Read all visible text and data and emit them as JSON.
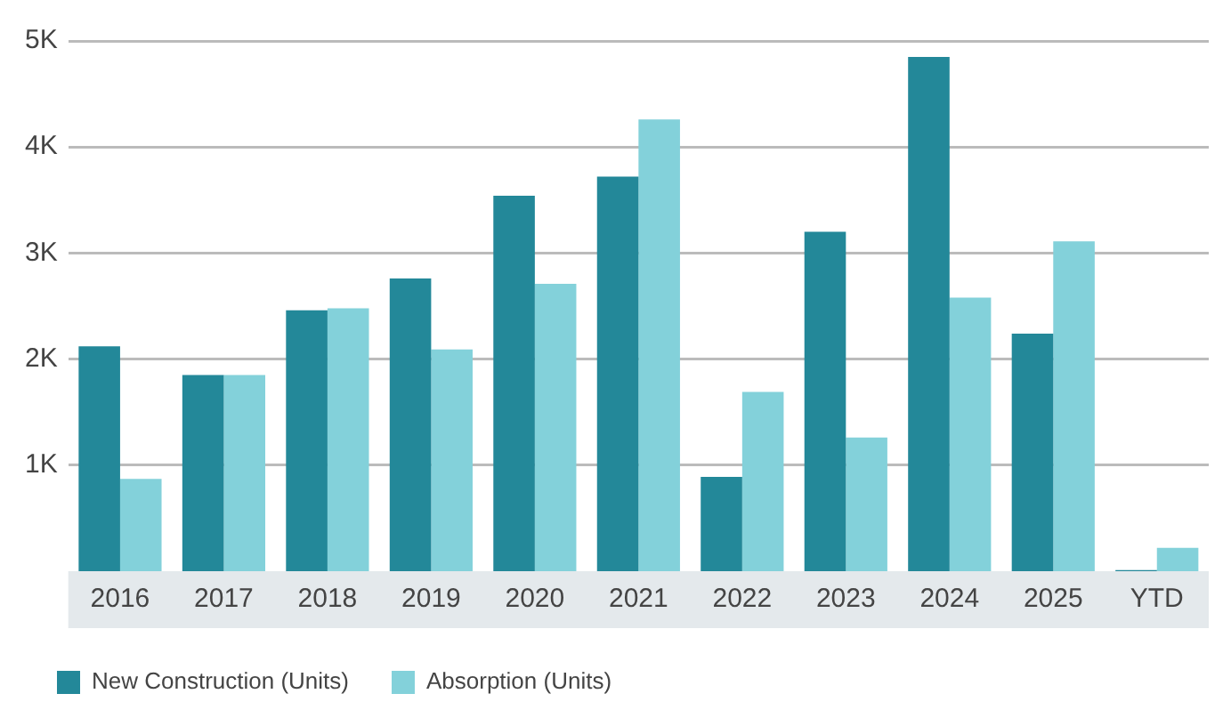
{
  "chart_data": {
    "type": "bar",
    "categories": [
      "2016",
      "2017",
      "2018",
      "2019",
      "2020",
      "2021",
      "2022",
      "2023",
      "2024",
      "2025",
      "YTD"
    ],
    "series": [
      {
        "name": "New Construction (Units)",
        "color": "#238899",
        "values": [
          2120,
          1850,
          2460,
          2760,
          3540,
          3720,
          890,
          3200,
          4850,
          2240,
          10
        ]
      },
      {
        "name": "Absorption (Units)",
        "color": "#83d1da",
        "values": [
          870,
          1850,
          2480,
          2090,
          2710,
          4260,
          1690,
          1260,
          2580,
          3110,
          220
        ]
      }
    ],
    "ylim": [
      0,
      5000
    ],
    "yticks": [
      {
        "value": 1000,
        "label": "1K"
      },
      {
        "value": 2000,
        "label": "2K"
      },
      {
        "value": 3000,
        "label": "3K"
      },
      {
        "value": 4000,
        "label": "4K"
      },
      {
        "value": 5000,
        "label": "5K"
      }
    ],
    "grid": "y",
    "legend": "bottom left"
  }
}
